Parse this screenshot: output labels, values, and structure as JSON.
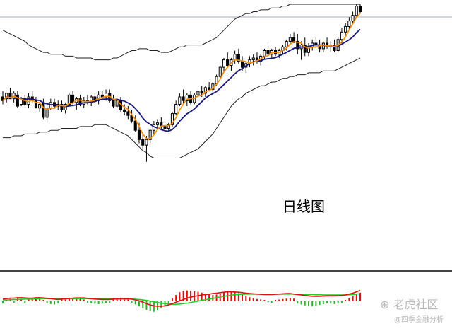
{
  "annotation": "日线图",
  "watermark": {
    "brand": "老虎社区",
    "handle": "@四季金融分析"
  },
  "colors": {
    "up": "#000000",
    "down": "#000000",
    "ma_fast": "#ff8c00",
    "ma_slow": "#1a1a7a",
    "bollinger": "#222222",
    "hist_pos": "#e01010",
    "hist_neg": "#22bb22",
    "dif": "#e01010",
    "dea": "#22cc22",
    "grid": "#a0aac0"
  },
  "chart_data": [
    {
      "type": "candlestick",
      "title": "",
      "ylim": [
        0,
        100
      ],
      "candles": [
        {
          "o": 50,
          "h": 53,
          "l": 46,
          "c": 48
        },
        {
          "o": 49,
          "h": 52,
          "l": 47,
          "c": 52
        },
        {
          "o": 52,
          "h": 55,
          "l": 49,
          "c": 49
        },
        {
          "o": 49,
          "h": 53,
          "l": 47,
          "c": 52
        },
        {
          "o": 51,
          "h": 53,
          "l": 44,
          "c": 45
        },
        {
          "o": 46,
          "h": 50,
          "l": 45,
          "c": 49
        },
        {
          "o": 49,
          "h": 51,
          "l": 45,
          "c": 46
        },
        {
          "o": 46,
          "h": 52,
          "l": 44,
          "c": 50
        },
        {
          "o": 50,
          "h": 53,
          "l": 47,
          "c": 48
        },
        {
          "o": 48,
          "h": 50,
          "l": 44,
          "c": 44
        },
        {
          "o": 44,
          "h": 47,
          "l": 42,
          "c": 46
        },
        {
          "o": 47,
          "h": 49,
          "l": 38,
          "c": 39
        },
        {
          "o": 39,
          "h": 46,
          "l": 36,
          "c": 44
        },
        {
          "o": 44,
          "h": 49,
          "l": 43,
          "c": 47
        },
        {
          "o": 47,
          "h": 49,
          "l": 44,
          "c": 45
        },
        {
          "o": 45,
          "h": 48,
          "l": 43,
          "c": 46
        },
        {
          "o": 46,
          "h": 48,
          "l": 42,
          "c": 43
        },
        {
          "o": 43,
          "h": 47,
          "l": 41,
          "c": 46
        },
        {
          "o": 46,
          "h": 52,
          "l": 45,
          "c": 51
        },
        {
          "o": 51,
          "h": 53,
          "l": 46,
          "c": 47
        },
        {
          "o": 47,
          "h": 50,
          "l": 43,
          "c": 49
        },
        {
          "o": 49,
          "h": 51,
          "l": 45,
          "c": 46
        },
        {
          "o": 46,
          "h": 50,
          "l": 44,
          "c": 48
        },
        {
          "o": 48,
          "h": 51,
          "l": 46,
          "c": 47
        },
        {
          "o": 47,
          "h": 51,
          "l": 45,
          "c": 50
        },
        {
          "o": 50,
          "h": 52,
          "l": 47,
          "c": 48
        },
        {
          "o": 48,
          "h": 53,
          "l": 46,
          "c": 51
        },
        {
          "o": 51,
          "h": 53,
          "l": 48,
          "c": 50
        },
        {
          "o": 50,
          "h": 54,
          "l": 48,
          "c": 52
        },
        {
          "o": 52,
          "h": 54,
          "l": 47,
          "c": 48
        },
        {
          "o": 48,
          "h": 51,
          "l": 44,
          "c": 45
        },
        {
          "o": 45,
          "h": 49,
          "l": 44,
          "c": 48
        },
        {
          "o": 48,
          "h": 50,
          "l": 42,
          "c": 43
        },
        {
          "o": 43,
          "h": 46,
          "l": 40,
          "c": 42
        },
        {
          "o": 42,
          "h": 45,
          "l": 38,
          "c": 40
        },
        {
          "o": 40,
          "h": 43,
          "l": 36,
          "c": 37
        },
        {
          "o": 37,
          "h": 40,
          "l": 31,
          "c": 32
        },
        {
          "o": 32,
          "h": 36,
          "l": 25,
          "c": 27
        },
        {
          "o": 27,
          "h": 31,
          "l": 22,
          "c": 24
        },
        {
          "o": 24,
          "h": 29,
          "l": 15,
          "c": 27
        },
        {
          "o": 27,
          "h": 33,
          "l": 25,
          "c": 32
        },
        {
          "o": 32,
          "h": 37,
          "l": 30,
          "c": 35
        },
        {
          "o": 35,
          "h": 38,
          "l": 33,
          "c": 36
        },
        {
          "o": 36,
          "h": 39,
          "l": 32,
          "c": 34
        },
        {
          "o": 34,
          "h": 37,
          "l": 31,
          "c": 33
        },
        {
          "o": 33,
          "h": 36,
          "l": 31,
          "c": 35
        },
        {
          "o": 35,
          "h": 42,
          "l": 34,
          "c": 41
        },
        {
          "o": 41,
          "h": 48,
          "l": 40,
          "c": 46
        },
        {
          "o": 46,
          "h": 52,
          "l": 45,
          "c": 50
        },
        {
          "o": 50,
          "h": 54,
          "l": 46,
          "c": 48
        },
        {
          "o": 48,
          "h": 52,
          "l": 45,
          "c": 51
        },
        {
          "o": 51,
          "h": 53,
          "l": 46,
          "c": 47
        },
        {
          "o": 47,
          "h": 52,
          "l": 46,
          "c": 51
        },
        {
          "o": 51,
          "h": 55,
          "l": 49,
          "c": 53
        },
        {
          "o": 53,
          "h": 56,
          "l": 50,
          "c": 52
        },
        {
          "o": 52,
          "h": 56,
          "l": 50,
          "c": 55
        },
        {
          "o": 55,
          "h": 58,
          "l": 53,
          "c": 54
        },
        {
          "o": 54,
          "h": 58,
          "l": 52,
          "c": 57
        },
        {
          "o": 57,
          "h": 62,
          "l": 56,
          "c": 61
        },
        {
          "o": 61,
          "h": 67,
          "l": 60,
          "c": 66
        },
        {
          "o": 66,
          "h": 71,
          "l": 63,
          "c": 70
        },
        {
          "o": 70,
          "h": 74,
          "l": 66,
          "c": 67
        },
        {
          "o": 67,
          "h": 71,
          "l": 64,
          "c": 70
        },
        {
          "o": 70,
          "h": 75,
          "l": 68,
          "c": 73
        },
        {
          "o": 73,
          "h": 76,
          "l": 68,
          "c": 69
        },
        {
          "o": 69,
          "h": 72,
          "l": 64,
          "c": 66
        },
        {
          "o": 66,
          "h": 69,
          "l": 63,
          "c": 68
        },
        {
          "o": 68,
          "h": 72,
          "l": 66,
          "c": 70
        },
        {
          "o": 70,
          "h": 73,
          "l": 67,
          "c": 71
        },
        {
          "o": 71,
          "h": 74,
          "l": 68,
          "c": 69
        },
        {
          "o": 69,
          "h": 73,
          "l": 67,
          "c": 72
        },
        {
          "o": 72,
          "h": 76,
          "l": 70,
          "c": 75
        },
        {
          "o": 75,
          "h": 78,
          "l": 72,
          "c": 73
        },
        {
          "o": 73,
          "h": 76,
          "l": 71,
          "c": 75
        },
        {
          "o": 75,
          "h": 77,
          "l": 72,
          "c": 73
        },
        {
          "o": 73,
          "h": 76,
          "l": 71,
          "c": 75
        },
        {
          "o": 75,
          "h": 78,
          "l": 73,
          "c": 77
        },
        {
          "o": 77,
          "h": 81,
          "l": 75,
          "c": 80
        },
        {
          "o": 80,
          "h": 84,
          "l": 78,
          "c": 82
        },
        {
          "o": 82,
          "h": 85,
          "l": 79,
          "c": 80
        },
        {
          "o": 80,
          "h": 84,
          "l": 73,
          "c": 76
        },
        {
          "o": 76,
          "h": 80,
          "l": 70,
          "c": 78
        },
        {
          "o": 78,
          "h": 82,
          "l": 72,
          "c": 74
        },
        {
          "o": 74,
          "h": 79,
          "l": 72,
          "c": 77
        },
        {
          "o": 77,
          "h": 81,
          "l": 75,
          "c": 79
        },
        {
          "o": 79,
          "h": 82,
          "l": 76,
          "c": 78
        },
        {
          "o": 78,
          "h": 81,
          "l": 74,
          "c": 76
        },
        {
          "o": 76,
          "h": 80,
          "l": 74,
          "c": 79
        },
        {
          "o": 79,
          "h": 82,
          "l": 76,
          "c": 77
        },
        {
          "o": 77,
          "h": 80,
          "l": 74,
          "c": 78
        },
        {
          "o": 78,
          "h": 81,
          "l": 74,
          "c": 75
        },
        {
          "o": 75,
          "h": 82,
          "l": 74,
          "c": 81
        },
        {
          "o": 81,
          "h": 87,
          "l": 79,
          "c": 85
        },
        {
          "o": 85,
          "h": 90,
          "l": 83,
          "c": 88
        },
        {
          "o": 88,
          "h": 93,
          "l": 86,
          "c": 91
        },
        {
          "o": 91,
          "h": 96,
          "l": 89,
          "c": 94
        },
        {
          "o": 94,
          "h": 100,
          "l": 93,
          "c": 99
        },
        {
          "o": 99,
          "h": 100,
          "l": 95,
          "c": 96
        }
      ],
      "overlays": [
        {
          "name": "ma_fast",
          "color_key": "ma_fast"
        },
        {
          "name": "ma_slow",
          "color_key": "ma_slow"
        },
        {
          "name": "bollinger_upper",
          "color_key": "bollinger"
        },
        {
          "name": "bollinger_lower",
          "color_key": "bollinger"
        }
      ],
      "bollinger_upper": [
        86,
        85,
        84,
        83,
        82,
        81,
        80,
        78,
        77,
        76,
        75,
        74,
        74,
        73,
        73,
        73,
        73,
        72,
        72,
        72,
        71,
        71,
        71,
        71,
        71,
        70,
        70,
        70,
        70,
        70,
        71,
        71,
        72,
        73,
        74,
        75,
        75,
        76,
        76,
        76,
        75,
        75,
        75,
        74,
        74,
        74,
        75,
        76,
        77,
        77,
        78,
        78,
        78,
        78,
        78,
        79,
        80,
        81,
        82,
        84,
        86,
        88,
        90,
        92,
        93,
        94,
        95,
        95,
        96,
        96,
        97,
        97,
        97,
        98,
        98,
        98,
        99,
        99,
        100,
        100,
        100,
        100,
        100,
        100,
        100,
        100,
        100,
        100,
        100,
        100,
        100,
        100,
        100,
        100,
        100,
        100,
        100,
        100
      ],
      "bollinger_lower": [
        28,
        28,
        28,
        29,
        29,
        29,
        30,
        30,
        30,
        30,
        31,
        31,
        31,
        32,
        32,
        32,
        33,
        33,
        33,
        33,
        33,
        34,
        34,
        34,
        34,
        35,
        35,
        35,
        35,
        34,
        33,
        32,
        31,
        30,
        29,
        27,
        25,
        23,
        21,
        20,
        18,
        17,
        17,
        17,
        17,
        17,
        17,
        17,
        17,
        18,
        19,
        20,
        21,
        22,
        24,
        26,
        28,
        30,
        33,
        36,
        39,
        42,
        45,
        47,
        49,
        50,
        52,
        53,
        54,
        55,
        56,
        56,
        57,
        58,
        58,
        59,
        60,
        60,
        61,
        61,
        62,
        62,
        62,
        63,
        63,
        63,
        63,
        64,
        64,
        64,
        64,
        65,
        66,
        67,
        68,
        69,
        70,
        71
      ]
    },
    {
      "type": "bar",
      "title": "",
      "ylim": [
        -100,
        100
      ],
      "hist": [
        -10,
        8,
        12,
        -6,
        14,
        10,
        -8,
        9,
        12,
        10,
        14,
        6,
        -8,
        -12,
        -14,
        -10,
        10,
        8,
        12,
        16,
        14,
        10,
        8,
        -6,
        -8,
        -10,
        -12,
        -10,
        -8,
        -6,
        10,
        12,
        16,
        12,
        10,
        -6,
        -14,
        -22,
        -30,
        -38,
        -44,
        -46,
        -40,
        -30,
        -20,
        -10,
        12,
        28,
        40,
        46,
        48,
        46,
        44,
        42,
        38,
        34,
        30,
        28,
        30,
        34,
        40,
        44,
        46,
        42,
        36,
        30,
        24,
        18,
        14,
        10,
        8,
        6,
        -4,
        -6,
        6,
        8,
        10,
        12,
        14,
        12,
        -10,
        -14,
        -18,
        -20,
        -22,
        -20,
        -16,
        -12,
        -8,
        -10,
        -12,
        -10,
        -8,
        6,
        14,
        22,
        30,
        38
      ],
      "dif": [
        10,
        12,
        14,
        14,
        16,
        16,
        15,
        14,
        14,
        16,
        16,
        15,
        13,
        12,
        10,
        8,
        10,
        11,
        12,
        14,
        15,
        15,
        15,
        13,
        12,
        10,
        9,
        8,
        8,
        8,
        10,
        11,
        12,
        12,
        12,
        10,
        6,
        2,
        -4,
        -10,
        -16,
        -20,
        -22,
        -22,
        -20,
        -16,
        -10,
        -4,
        2,
        8,
        14,
        18,
        22,
        25,
        28,
        30,
        32,
        34,
        36,
        38,
        40,
        42,
        42,
        41,
        40,
        38,
        36,
        34,
        33,
        32,
        31,
        30,
        30,
        30,
        31,
        32,
        33,
        34,
        34,
        32,
        30,
        28,
        26,
        24,
        22,
        22,
        22,
        23,
        24,
        24,
        24,
        25,
        26,
        28,
        32,
        36,
        42,
        48
      ],
      "dea": [
        6,
        6,
        7,
        8,
        8,
        9,
        10,
        10,
        10,
        11,
        11,
        12,
        12,
        12,
        12,
        12,
        12,
        12,
        12,
        12,
        12,
        12,
        12,
        12,
        11,
        11,
        11,
        10,
        10,
        10,
        10,
        10,
        10,
        10,
        10,
        10,
        9,
        8,
        6,
        4,
        1,
        -2,
        -5,
        -8,
        -10,
        -12,
        -13,
        -13,
        -12,
        -10,
        -8,
        -5,
        -2,
        1,
        4,
        7,
        10,
        13,
        16,
        19,
        22,
        25,
        27,
        29,
        30,
        31,
        32,
        32,
        32,
        32,
        32,
        32,
        32,
        32,
        32,
        32,
        32,
        32,
        32,
        32,
        32,
        32,
        31,
        30,
        30,
        29,
        29,
        28,
        28,
        28,
        28,
        28,
        28,
        28,
        29,
        30,
        32,
        34
      ]
    }
  ]
}
